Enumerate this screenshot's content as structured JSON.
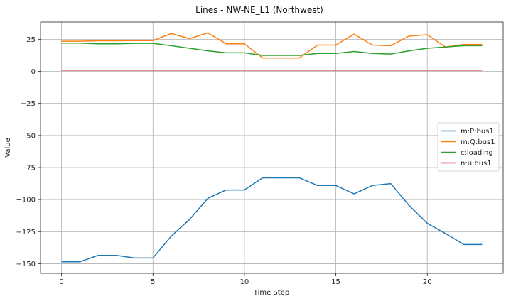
{
  "chart_data": {
    "type": "line",
    "title": "Lines - NW-NE_L1 (Northwest)",
    "xlabel": "Time Step",
    "ylabel": "Value",
    "xlim": [
      -1.15,
      24.15
    ],
    "ylim": [
      -157.5,
      38.5
    ],
    "xticks": [
      0,
      5,
      10,
      15,
      20
    ],
    "yticks": [
      25,
      0,
      -25,
      -50,
      -75,
      -100,
      -125,
      -150
    ],
    "grid": true,
    "legend_position": "center-right",
    "x": [
      0,
      1,
      2,
      3,
      4,
      5,
      6,
      7,
      8,
      9,
      10,
      11,
      12,
      13,
      14,
      15,
      16,
      17,
      18,
      19,
      20,
      21,
      22,
      23
    ],
    "series": [
      {
        "name": "m:P:bus1",
        "color": "#1f77b4",
        "values": [
          -148.5,
          -148.5,
          -143.5,
          -143.5,
          -145.5,
          -145.5,
          -128.5,
          -115.5,
          -99,
          -92.5,
          -92.5,
          -83,
          -83,
          -83,
          -89,
          -89,
          -95.5,
          -89,
          -87.5,
          -104.5,
          -118.5,
          -126.5,
          -135,
          -135
        ]
      },
      {
        "name": "m:Q:bus1",
        "color": "#ff7f0e",
        "values": [
          23.5,
          23.5,
          23.8,
          23.8,
          24,
          24,
          29.5,
          25.5,
          30,
          21.5,
          21.5,
          10.5,
          10.5,
          10.5,
          20.5,
          20.5,
          29,
          20.5,
          20,
          27.5,
          28.5,
          19,
          21,
          21
        ]
      },
      {
        "name": "c:loading",
        "color": "#2ca02c",
        "values": [
          22,
          22,
          21.5,
          21.5,
          21.8,
          21.8,
          20,
          18,
          16,
          14.5,
          14.5,
          12.5,
          12.5,
          12.5,
          14,
          14,
          15.5,
          14,
          13.5,
          16,
          18,
          19,
          20,
          20
        ]
      },
      {
        "name": "n:u:bus1",
        "color": "#d62728",
        "values": [
          1,
          1,
          1,
          1,
          1,
          1,
          1,
          1,
          1,
          1,
          1,
          1,
          1,
          1,
          1,
          1,
          1,
          1,
          1,
          1,
          1,
          1,
          1,
          1
        ]
      }
    ]
  }
}
